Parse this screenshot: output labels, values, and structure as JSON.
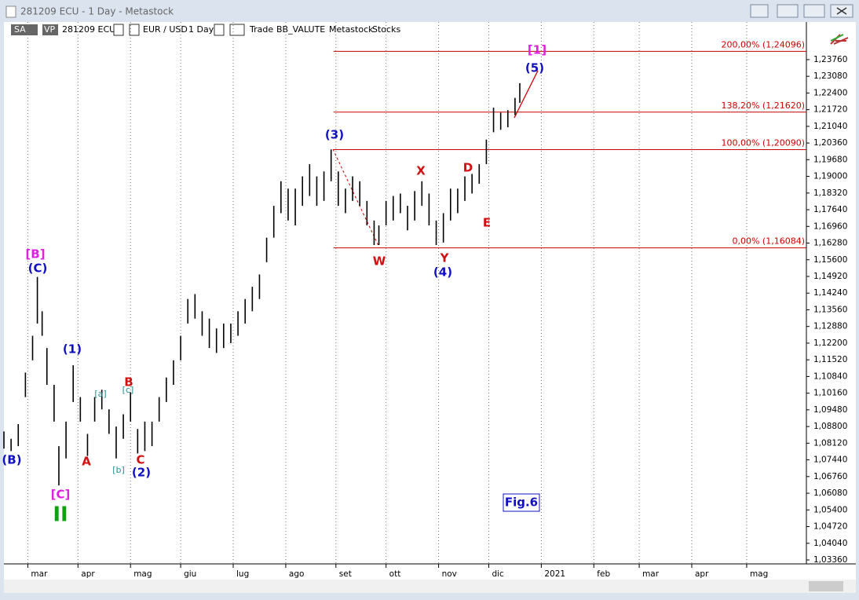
{
  "window": {
    "title": "281209 ECU - 1 Day - Metastock"
  },
  "toolbar": {
    "items": [
      "SA",
      "VP",
      "281209 ECU",
      "EUR / USD",
      "1 Day",
      "Trade",
      "BB_VALUTE",
      "Metastock",
      "Stocks"
    ]
  },
  "chart_data": {
    "type": "hlbar",
    "color": "#000000",
    "x": [
      0,
      3,
      6,
      9,
      12,
      14,
      16,
      18,
      21,
      23,
      26,
      29,
      32,
      35,
      38,
      41,
      44,
      47,
      50,
      53,
      56,
      59,
      62,
      65,
      68,
      71,
      74,
      77,
      80,
      83,
      86,
      89,
      92,
      95,
      98,
      101,
      104,
      107,
      110,
      113,
      116,
      119,
      122,
      125,
      128,
      131,
      134,
      137,
      140,
      143,
      146,
      149,
      152,
      155,
      157,
      160,
      163,
      166,
      169,
      172,
      175,
      178,
      181,
      184,
      187,
      190,
      193,
      196,
      199,
      202,
      205,
      208,
      211,
      214,
      216
    ],
    "high": [
      1.086,
      1.083,
      1.089,
      1.11,
      1.125,
      1.149,
      1.135,
      1.12,
      1.105,
      1.08,
      1.09,
      1.113,
      1.1,
      1.085,
      1.1,
      1.103,
      1.095,
      1.088,
      1.093,
      1.102,
      1.087,
      1.09,
      1.09,
      1.1,
      1.108,
      1.115,
      1.125,
      1.14,
      1.142,
      1.135,
      1.132,
      1.128,
      1.13,
      1.13,
      1.135,
      1.14,
      1.145,
      1.15,
      1.165,
      1.178,
      1.188,
      1.185,
      1.185,
      1.19,
      1.195,
      1.19,
      1.192,
      1.201,
      1.192,
      1.185,
      1.19,
      1.188,
      1.18,
      1.172,
      1.17,
      1.18,
      1.182,
      1.183,
      1.178,
      1.184,
      1.188,
      1.183,
      1.172,
      1.175,
      1.185,
      1.185,
      1.19,
      1.191,
      1.195,
      1.205,
      1.218,
      1.216,
      1.217,
      1.222,
      1.228
    ],
    "low": [
      1.079,
      1.078,
      1.08,
      1.1,
      1.115,
      1.13,
      1.125,
      1.105,
      1.09,
      1.064,
      1.075,
      1.098,
      1.09,
      1.076,
      1.09,
      1.095,
      1.085,
      1.075,
      1.083,
      1.09,
      1.077,
      1.078,
      1.08,
      1.09,
      1.098,
      1.105,
      1.115,
      1.13,
      1.132,
      1.125,
      1.12,
      1.118,
      1.12,
      1.122,
      1.125,
      1.13,
      1.135,
      1.14,
      1.155,
      1.165,
      1.175,
      1.172,
      1.17,
      1.178,
      1.182,
      1.178,
      1.18,
      1.188,
      1.178,
      1.175,
      1.18,
      1.178,
      1.17,
      1.162,
      1.162,
      1.17,
      1.172,
      1.175,
      1.168,
      1.172,
      1.178,
      1.17,
      1.162,
      1.163,
      1.172,
      1.175,
      1.18,
      1.183,
      1.187,
      1.195,
      1.208,
      1.209,
      1.21,
      1.215,
      1.22
    ],
    "xlim": [
      0,
      336
    ],
    "ylim": [
      1.032,
      1.2459
    ],
    "xticks": [
      {
        "value": 10,
        "label": "mar"
      },
      {
        "value": 31,
        "label": "apr"
      },
      {
        "value": 53,
        "label": "mag"
      },
      {
        "value": 74,
        "label": "giu"
      },
      {
        "value": 96,
        "label": "lug"
      },
      {
        "value": 118,
        "label": "ago"
      },
      {
        "value": 139,
        "label": "set"
      },
      {
        "value": 160,
        "label": "ott"
      },
      {
        "value": 182,
        "label": "nov"
      },
      {
        "value": 203,
        "label": "dic"
      },
      {
        "value": 225,
        "label": "2021"
      },
      {
        "value": 247,
        "label": "feb"
      },
      {
        "value": 266,
        "label": "mar"
      },
      {
        "value": 288,
        "label": "apr"
      },
      {
        "value": 311,
        "label": "mag"
      }
    ],
    "yticks": [
      {
        "value": 1.0336,
        "label": "1,03360"
      },
      {
        "value": 1.0404,
        "label": "1,04040"
      },
      {
        "value": 1.0472,
        "label": "1,04720"
      },
      {
        "value": 1.054,
        "label": "1,05400"
      },
      {
        "value": 1.0608,
        "label": "1,06080"
      },
      {
        "value": 1.0676,
        "label": "1,06760"
      },
      {
        "value": 1.0744,
        "label": "1,07440"
      },
      {
        "value": 1.0812,
        "label": "1,08120"
      },
      {
        "value": 1.088,
        "label": "1,08800"
      },
      {
        "value": 1.0948,
        "label": "1,09480"
      },
      {
        "value": 1.1016,
        "label": "1,10160"
      },
      {
        "value": 1.1084,
        "label": "1,10840"
      },
      {
        "value": 1.1152,
        "label": "1,11520"
      },
      {
        "value": 1.122,
        "label": "1,12200"
      },
      {
        "value": 1.1288,
        "label": "1,12880"
      },
      {
        "value": 1.1356,
        "label": "1,13560"
      },
      {
        "value": 1.1424,
        "label": "1,14240"
      },
      {
        "value": 1.1492,
        "label": "1,14920"
      },
      {
        "value": 1.156,
        "label": "1,15600"
      },
      {
        "value": 1.1628,
        "label": "1,16280"
      },
      {
        "value": 1.1696,
        "label": "1,16960"
      },
      {
        "value": 1.1764,
        "label": "1,17640"
      },
      {
        "value": 1.1832,
        "label": "1,18320"
      },
      {
        "value": 1.19,
        "label": "1,19000"
      },
      {
        "value": 1.1968,
        "label": "1,19680"
      },
      {
        "value": 1.2036,
        "label": "1,20360"
      },
      {
        "value": 1.2104,
        "label": "1,21040"
      },
      {
        "value": 1.2172,
        "label": "1,21720"
      },
      {
        "value": 1.224,
        "label": "1,22400"
      },
      {
        "value": 1.2308,
        "label": "1,23080"
      },
      {
        "value": 1.2376,
        "label": "1,23760"
      }
    ],
    "levels": [
      {
        "value": 1.24096,
        "label": "200,00% (1,24096)",
        "start": 138
      },
      {
        "value": 1.2162,
        "label": "138,20% (1,21620)",
        "start": 138
      },
      {
        "value": 1.2009,
        "label": "100,00% (1,20090)",
        "start": 138
      },
      {
        "value": 1.16084,
        "label": "0,00% (1,16084)",
        "start": 138
      }
    ],
    "level_color": "#cc0000",
    "annotations": [
      {
        "text": "[1]",
        "color": "#e020e0"
      },
      {
        "text": "(5)",
        "color": "#1010c0"
      },
      {
        "text": "(3)",
        "color": "#1010c0"
      },
      {
        "text": "X",
        "color": "#d01010"
      },
      {
        "text": "D",
        "color": "#d01010"
      },
      {
        "text": "E",
        "color": "#d01010"
      },
      {
        "text": "W",
        "color": "#d01010"
      },
      {
        "text": "Y",
        "color": "#d01010"
      },
      {
        "text": "(4)",
        "color": "#1010c0"
      },
      {
        "text": "[B]",
        "color": "#e020e0"
      },
      {
        "text": "(C)",
        "color": "#1010c0"
      },
      {
        "text": "(1)",
        "color": "#1010c0"
      },
      {
        "text": "[a]",
        "color": "#209090"
      },
      {
        "text": "[c]",
        "color": "#209090"
      },
      {
        "text": "B",
        "color": "#d01010"
      },
      {
        "text": "A",
        "color": "#d01010"
      },
      {
        "text": "[b]",
        "color": "#209090"
      },
      {
        "text": "C",
        "color": "#d01010"
      },
      {
        "text": "(2)",
        "color": "#1010c0"
      },
      {
        "text": "(B)",
        "color": "#1010c0"
      },
      {
        "text": "[C]",
        "color": "#e020e0"
      },
      {
        "text": "II",
        "color": "#10a010"
      },
      {
        "text": "Fig.6",
        "color": "#1010c0"
      }
    ]
  }
}
